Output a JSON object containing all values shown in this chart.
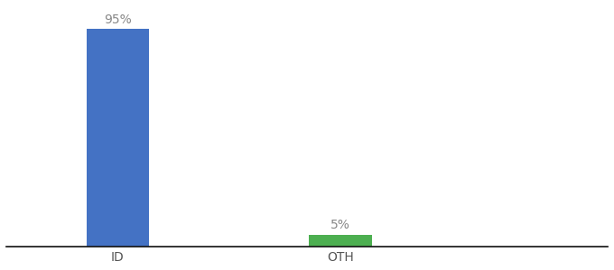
{
  "categories": [
    "ID",
    "OTH"
  ],
  "values": [
    95,
    5
  ],
  "bar_colors": [
    "#4472c4",
    "#4caf50"
  ],
  "label_color": "#888888",
  "value_labels": [
    "95%",
    "5%"
  ],
  "background_color": "#ffffff",
  "ylim": [
    0,
    105
  ],
  "bar_width": 0.28,
  "x_positions": [
    1,
    2
  ],
  "xlim": [
    0.5,
    3.2
  ]
}
